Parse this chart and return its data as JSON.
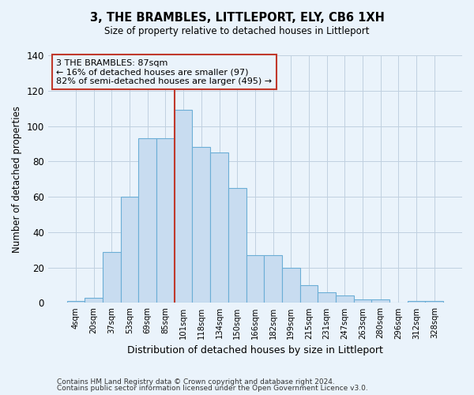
{
  "title": "3, THE BRAMBLES, LITTLEPORT, ELY, CB6 1XH",
  "subtitle": "Size of property relative to detached houses in Littleport",
  "xlabel": "Distribution of detached houses by size in Littleport",
  "ylabel": "Number of detached properties",
  "footer_line1": "Contains HM Land Registry data © Crown copyright and database right 2024.",
  "footer_line2": "Contains public sector information licensed under the Open Government Licence v3.0.",
  "bar_labels": [
    "4sqm",
    "20sqm",
    "37sqm",
    "53sqm",
    "69sqm",
    "85sqm",
    "101sqm",
    "118sqm",
    "134sqm",
    "150sqm",
    "166sqm",
    "182sqm",
    "199sqm",
    "215sqm",
    "231sqm",
    "247sqm",
    "263sqm",
    "280sqm",
    "296sqm",
    "312sqm",
    "328sqm"
  ],
  "bar_heights": [
    1,
    3,
    29,
    60,
    93,
    93,
    109,
    88,
    85,
    65,
    27,
    27,
    20,
    10,
    6,
    4,
    2,
    2,
    0,
    1,
    1
  ],
  "bar_color": "#c8dcf0",
  "bar_edge_color": "#6baed6",
  "vline_x_index": 5,
  "vline_color": "#c0392b",
  "annotation_title": "3 THE BRAMBLES: 87sqm",
  "annotation_line1": "← 16% of detached houses are smaller (97)",
  "annotation_line2": "82% of semi-detached houses are larger (495) →",
  "annotation_box_color": "#c0392b",
  "ylim": [
    0,
    140
  ],
  "yticks": [
    0,
    20,
    40,
    60,
    80,
    100,
    120,
    140
  ],
  "bg_color": "#eaf3fb",
  "plot_bg_color": "#eaf3fb",
  "grid_color": "#c0d0e0"
}
